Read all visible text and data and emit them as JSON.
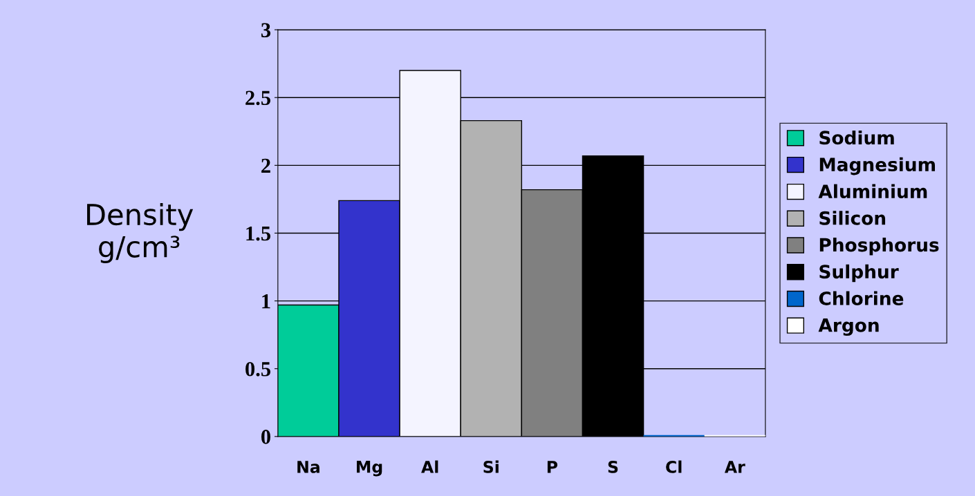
{
  "chart_data": {
    "type": "bar",
    "ylabel": "Density\ng/cm³",
    "categories": [
      "Na",
      "Mg",
      "Al",
      "Si",
      "P",
      "S",
      "Cl",
      "Ar"
    ],
    "series": [
      {
        "name": "Sodium",
        "color": "#00cc99",
        "values": [
          0.97,
          null,
          null,
          null,
          null,
          null,
          null,
          null
        ]
      },
      {
        "name": "Magnesium",
        "color": "#3333cc",
        "values": [
          null,
          1.74,
          null,
          null,
          null,
          null,
          null,
          null
        ]
      },
      {
        "name": "Aluminium",
        "color": "#f4f4ff",
        "values": [
          null,
          null,
          2.7,
          null,
          null,
          null,
          null,
          null
        ]
      },
      {
        "name": "Silicon",
        "color": "#b2b2b2",
        "values": [
          null,
          null,
          null,
          2.33,
          null,
          null,
          null,
          null
        ]
      },
      {
        "name": "Phosphorus",
        "color": "#808080",
        "values": [
          null,
          null,
          null,
          null,
          1.82,
          null,
          null,
          null
        ]
      },
      {
        "name": "Sulphur",
        "color": "#000000",
        "values": [
          null,
          null,
          null,
          null,
          null,
          2.07,
          null,
          null
        ]
      },
      {
        "name": "Chlorine",
        "color": "#0066cc",
        "values": [
          null,
          null,
          null,
          null,
          null,
          null,
          0,
          null
        ]
      },
      {
        "name": "Argon",
        "color": "#ffffff",
        "values": [
          null,
          null,
          null,
          null,
          null,
          null,
          null,
          0
        ]
      }
    ],
    "ylim": [
      0,
      3
    ],
    "yticks": [
      0,
      0.5,
      1,
      1.5,
      2,
      2.5,
      3
    ],
    "grid": "y",
    "legend": "right"
  }
}
